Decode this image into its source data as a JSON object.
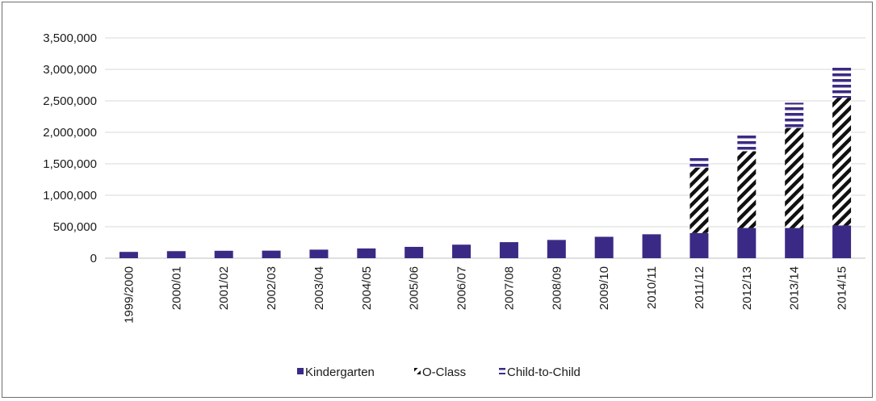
{
  "chart_data": {
    "type": "bar",
    "stacked": true,
    "categories": [
      "1999/2000",
      "2000/01",
      "2001/02",
      "2002/03",
      "2003/04",
      "2004/05",
      "2005/06",
      "2006/07",
      "2007/08",
      "2008/09",
      "2009/10",
      "2010/11",
      "2011/12",
      "2012/13",
      "2013/14",
      "2014/15"
    ],
    "series": [
      {
        "name": "Kindergarten",
        "values": [
          100000,
          112000,
          118000,
          120000,
          136000,
          155000,
          180000,
          215000,
          255000,
          290000,
          340000,
          380000,
          400000,
          480000,
          480000,
          520000
        ]
      },
      {
        "name": "O-Class",
        "values": [
          0,
          0,
          0,
          0,
          0,
          0,
          0,
          0,
          0,
          0,
          0,
          0,
          1040000,
          1220000,
          1590000,
          2030000
        ]
      },
      {
        "name": "Child-to-Child",
        "values": [
          0,
          0,
          0,
          0,
          0,
          0,
          0,
          0,
          0,
          0,
          0,
          0,
          180000,
          290000,
          400000,
          480000
        ]
      }
    ],
    "ylim": [
      0,
      3500000
    ],
    "yticks": [
      0,
      500000,
      1000000,
      1500000,
      2000000,
      2500000,
      3000000,
      3500000
    ],
    "ytick_labels": [
      "0",
      "500,000",
      "1,000,000",
      "1,500,000",
      "2,000,000",
      "2,500,000",
      "3,000,000",
      "3,500,000"
    ],
    "title": "",
    "xlabel": "",
    "ylabel": "",
    "grid": true,
    "legend_position": "bottom",
    "colors": {
      "bar": "#3b2a85",
      "hatch_stroke": "#111111",
      "hatch_bg": "#ffffff",
      "line_bg": "#ffffff"
    }
  }
}
